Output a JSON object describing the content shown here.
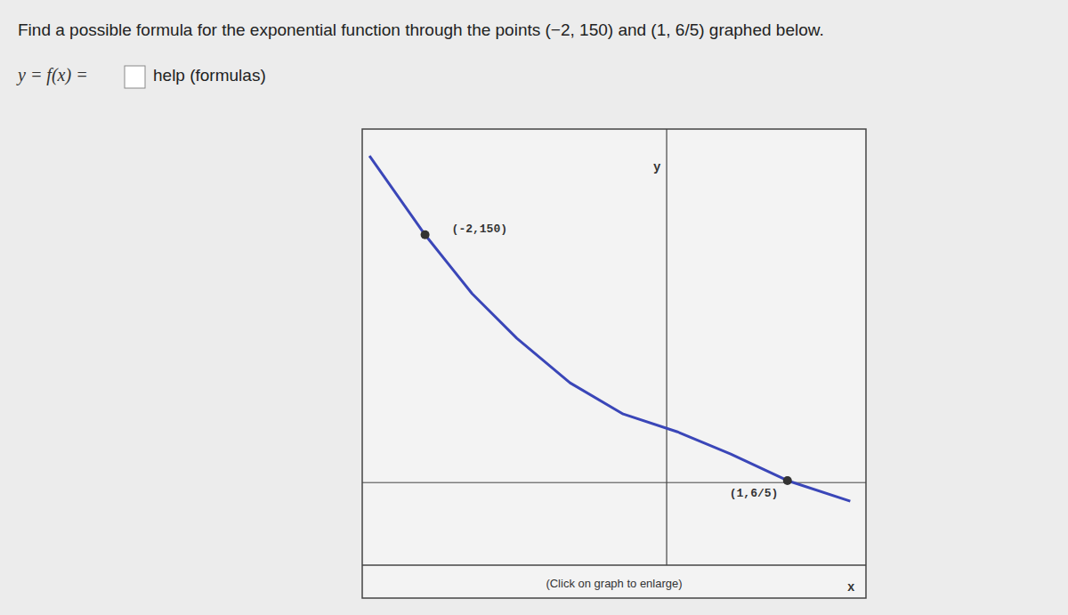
{
  "question": {
    "prompt": "Find a possible formula for the exponential function through the points (−2, 150) and (1, 6/5) graphed below.",
    "answer_label": "y = f(x) =",
    "help_link": "help (formulas)"
  },
  "chart_data": {
    "type": "line",
    "x_label": "x",
    "y_label": "y",
    "caption": "(Click on graph to enlarge)",
    "x": [
      -2.46,
      -2,
      -1.61,
      -1.24,
      -0.8,
      -0.36,
      0.09,
      0.53,
      1,
      1.52
    ],
    "values": [
      197.8,
      150,
      114.3,
      87.3,
      60.4,
      41.5,
      30.7,
      17.3,
      1.2,
      -11.3
    ],
    "color": "#3a46b8",
    "points": [
      {
        "x": -2,
        "y": 150,
        "label": "(-2,150)"
      },
      {
        "x": 1,
        "y": 1.2,
        "label": "(1,6/5)"
      }
    ],
    "xlim": [
      -2.52,
      1.65
    ],
    "ylim": [
      -50,
      214
    ],
    "tick_labels": false,
    "grid": false
  }
}
